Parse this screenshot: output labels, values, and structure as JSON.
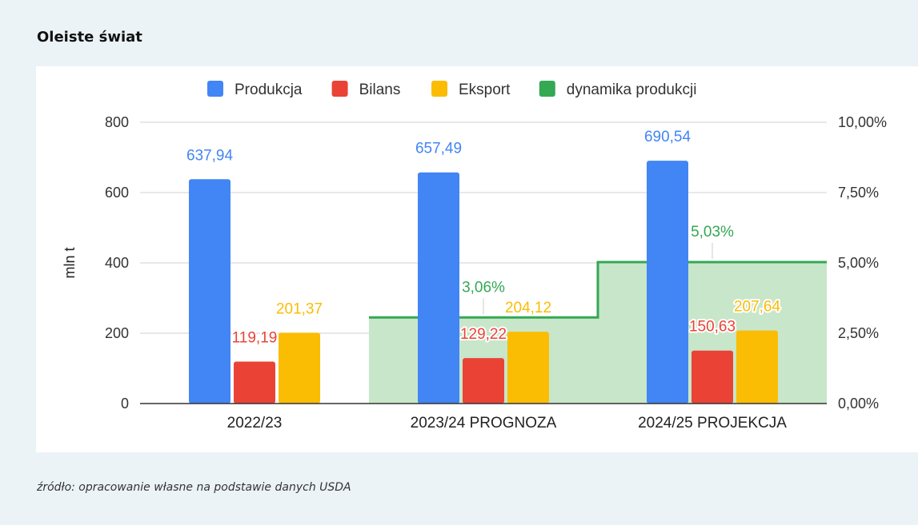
{
  "page": {
    "title": "Oleiste świat",
    "source": "źródło: opracowanie własne na podstawie danych USDA"
  },
  "chart_data": {
    "type": "bar",
    "categories": [
      "2022/23",
      "2023/24 PROGNOZA",
      "2024/25 PROJEKCJA"
    ],
    "series": [
      {
        "name": "Produkcja",
        "color": "#4285f4",
        "values": [
          637.94,
          657.49,
          690.54
        ],
        "labels": [
          "637,94",
          "657,49",
          "690,54"
        ]
      },
      {
        "name": "Bilans",
        "color": "#ea4335",
        "values": [
          119.19,
          129.22,
          150.63
        ],
        "labels": [
          "119,19",
          "129,22",
          "150,63"
        ]
      },
      {
        "name": "Eksport",
        "color": "#fbbc04",
        "values": [
          201.37,
          204.12,
          207.64
        ],
        "labels": [
          "201,37",
          "204,12",
          "207,64"
        ]
      }
    ],
    "secondary_series": {
      "name": "dynamika produkcji",
      "type": "stepped-area",
      "color": "#34a853",
      "fill": "#c8e6c9",
      "values": [
        null,
        3.06,
        5.03
      ],
      "labels": [
        "",
        "3,06%",
        "5,03%"
      ]
    },
    "ylabel": "mln t",
    "ylim": [
      0,
      800
    ],
    "yticks": [
      "0",
      "200",
      "400",
      "600",
      "800"
    ],
    "y2lim": [
      0,
      10
    ],
    "y2ticks": [
      "0,00%",
      "2,50%",
      "5,00%",
      "7,50%",
      "10,00%"
    ],
    "legend": "top",
    "grid": true
  }
}
